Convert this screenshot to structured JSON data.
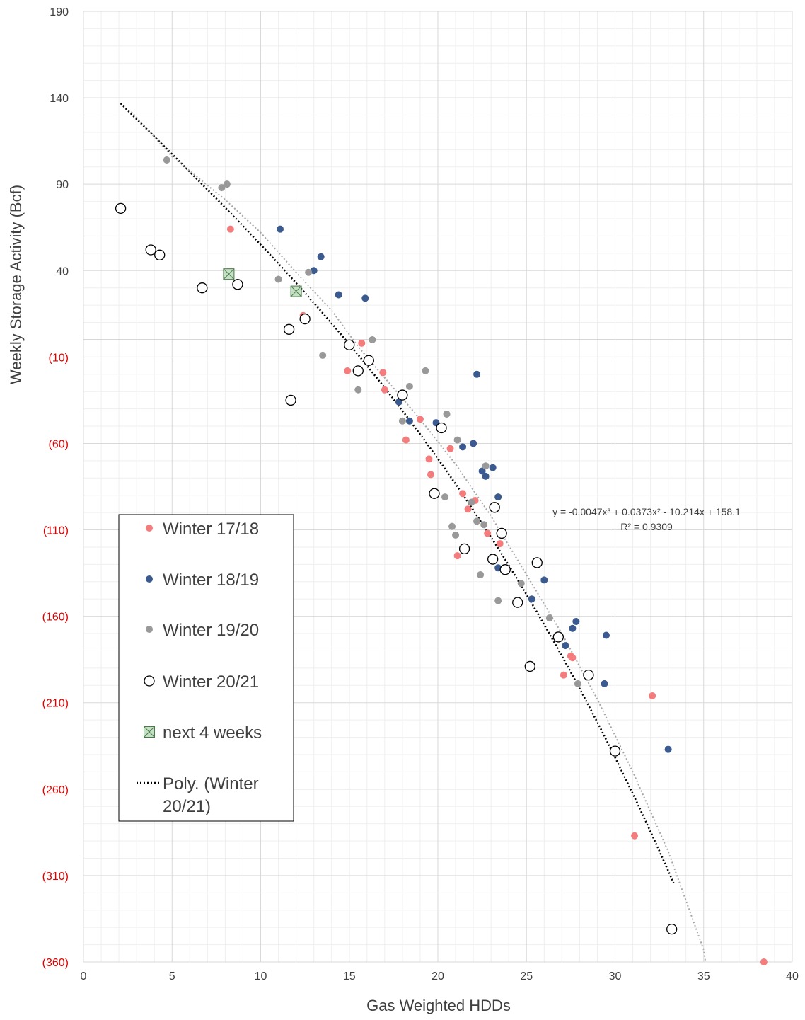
{
  "chart_data": {
    "type": "scatter",
    "xlabel": "Gas Weighted HDDs",
    "ylabel": "Weekly Storage Activity (Bcf)",
    "xlim": [
      0,
      40
    ],
    "ylim": [
      -360,
      190
    ],
    "x_ticks": [
      "0",
      "5",
      "10",
      "15",
      "20",
      "25",
      "30",
      "35",
      "40"
    ],
    "x_tick_values": [
      0,
      5,
      10,
      15,
      20,
      25,
      30,
      35,
      40
    ],
    "y_ticks": [
      "190",
      "140",
      "90",
      "40",
      "(10)",
      "(60)",
      "(110)",
      "(160)",
      "(210)",
      "(260)",
      "(310)",
      "(360)"
    ],
    "y_tick_values": [
      190,
      140,
      90,
      40,
      -10,
      -60,
      -110,
      -160,
      -210,
      -260,
      -310,
      -360
    ],
    "negative_tick_color": "#e00000",
    "grid": true,
    "legend_position": "bottom-left",
    "colors": {
      "winter_17_18": "#f47c7c",
      "winter_18_19": "#3b5a8f",
      "winter_19_20": "#999999",
      "winter_20_21_edge": "#000000",
      "next4_fill": "#c5e0c5",
      "next4_edge": "#4a7a4a",
      "poly_2021": "#000000",
      "poly_gray": "#a6a6a6",
      "grid": "#d9d9d9",
      "zero_line": "#bfbfbf"
    },
    "annotation": {
      "equation": "y = -0.0047x³ + 0.0373x² - 10.214x + 158.1",
      "r2": "R² = 0.9309"
    },
    "series": [
      {
        "name": "Winter 17/18",
        "marker": "filled-circle",
        "points": [
          [
            8.3,
            64
          ],
          [
            12.4,
            14
          ],
          [
            15.7,
            -2
          ],
          [
            14.9,
            -18
          ],
          [
            16.9,
            -19
          ],
          [
            17.0,
            -29
          ],
          [
            18.0,
            -33
          ],
          [
            19.0,
            -46
          ],
          [
            18.2,
            -58
          ],
          [
            20.7,
            -63
          ],
          [
            19.5,
            -69
          ],
          [
            19.6,
            -78
          ],
          [
            21.4,
            -89
          ],
          [
            21.7,
            -98
          ],
          [
            22.1,
            -93
          ],
          [
            22.8,
            -112
          ],
          [
            23.5,
            -118
          ],
          [
            21.1,
            -125
          ],
          [
            27.5,
            -183
          ],
          [
            27.6,
            -184
          ],
          [
            27.1,
            -194
          ],
          [
            32.1,
            -206
          ],
          [
            31.1,
            -287
          ],
          [
            38.4,
            -360
          ]
        ]
      },
      {
        "name": "Winter 18/19",
        "marker": "filled-circle",
        "points": [
          [
            11.1,
            64
          ],
          [
            13.4,
            48
          ],
          [
            13.0,
            40
          ],
          [
            14.4,
            26
          ],
          [
            15.9,
            24
          ],
          [
            22.2,
            -20
          ],
          [
            17.8,
            -36
          ],
          [
            18.4,
            -47
          ],
          [
            19.9,
            -48
          ],
          [
            22.0,
            -60
          ],
          [
            21.4,
            -62
          ],
          [
            22.5,
            -76
          ],
          [
            22.7,
            -79
          ],
          [
            23.1,
            -74
          ],
          [
            23.4,
            -91
          ],
          [
            23.4,
            -132
          ],
          [
            25.3,
            -150
          ],
          [
            26.0,
            -139
          ],
          [
            27.6,
            -167
          ],
          [
            27.8,
            -163
          ],
          [
            29.5,
            -171
          ],
          [
            27.2,
            -177
          ],
          [
            29.4,
            -199
          ],
          [
            33.0,
            -237
          ]
        ]
      },
      {
        "name": "Winter 19/20",
        "marker": "filled-circle",
        "points": [
          [
            4.7,
            104
          ],
          [
            7.8,
            88
          ],
          [
            8.1,
            90
          ],
          [
            11.0,
            35
          ],
          [
            12.7,
            39
          ],
          [
            16.3,
            0
          ],
          [
            13.5,
            -9
          ],
          [
            15.6,
            -18
          ],
          [
            19.3,
            -18
          ],
          [
            18.4,
            -27
          ],
          [
            15.5,
            -29
          ],
          [
            20.5,
            -43
          ],
          [
            18.0,
            -47
          ],
          [
            21.1,
            -58
          ],
          [
            22.7,
            -73
          ],
          [
            20.4,
            -91
          ],
          [
            21.9,
            -94
          ],
          [
            22.2,
            -105
          ],
          [
            22.6,
            -107
          ],
          [
            20.8,
            -108
          ],
          [
            21.0,
            -113
          ],
          [
            22.4,
            -136
          ],
          [
            24.7,
            -141
          ],
          [
            23.4,
            -151
          ],
          [
            26.3,
            -161
          ],
          [
            27.9,
            -199
          ]
        ]
      },
      {
        "name": "Winter 20/21",
        "marker": "open-circle",
        "points": [
          [
            2.1,
            76
          ],
          [
            3.8,
            52
          ],
          [
            4.3,
            49
          ],
          [
            6.7,
            30
          ],
          [
            8.7,
            32
          ],
          [
            11.6,
            6
          ],
          [
            12.5,
            12
          ],
          [
            15.0,
            -3
          ],
          [
            16.1,
            -12
          ],
          [
            15.5,
            -18
          ],
          [
            18.0,
            -32
          ],
          [
            11.7,
            -35
          ],
          [
            20.2,
            -51
          ],
          [
            19.8,
            -89
          ],
          [
            23.2,
            -97
          ],
          [
            23.6,
            -112
          ],
          [
            21.5,
            -121
          ],
          [
            23.1,
            -127
          ],
          [
            25.6,
            -129
          ],
          [
            23.8,
            -133
          ],
          [
            24.5,
            -152
          ],
          [
            26.8,
            -172
          ],
          [
            25.2,
            -189
          ],
          [
            28.5,
            -194
          ],
          [
            30.0,
            -238
          ],
          [
            33.2,
            -341
          ]
        ]
      },
      {
        "name": "next 4 weeks",
        "marker": "crossed-square",
        "points": [
          [
            8.2,
            38
          ],
          [
            12.0,
            28
          ]
        ]
      }
    ],
    "trendlines": [
      {
        "name": "Poly. (Winter 20/21)",
        "style": "dotted",
        "x_range": [
          2.1,
          33.3
        ],
        "coefficients": {
          "a3": -0.0047,
          "a2": 0.0373,
          "a1": -10.214,
          "a0": 158.1
        }
      },
      {
        "name": "",
        "style": "dotted",
        "points": [
          [
            2.7,
            132
          ],
          [
            5.0,
            106
          ],
          [
            8.0,
            81
          ],
          [
            10.0,
            62
          ],
          [
            12.0,
            39
          ],
          [
            14.0,
            17
          ],
          [
            15.5,
            -4
          ],
          [
            17.0,
            -22
          ],
          [
            19.0,
            -46
          ],
          [
            21.0,
            -72
          ],
          [
            23.0,
            -102
          ],
          [
            25.0,
            -136
          ],
          [
            27.0,
            -170
          ],
          [
            29.0,
            -208
          ],
          [
            31.0,
            -250
          ],
          [
            33.0,
            -296
          ],
          [
            35.0,
            -353
          ],
          [
            35.1,
            -360
          ]
        ]
      }
    ],
    "legend": [
      {
        "label": "Winter 17/18",
        "marker": "filled-circle",
        "color": "#f47c7c"
      },
      {
        "label": "Winter 18/19",
        "marker": "filled-circle",
        "color": "#3b5a8f"
      },
      {
        "label": "Winter 19/20",
        "marker": "filled-circle",
        "color": "#999999"
      },
      {
        "label": "Winter 20/21",
        "marker": "open-circle",
        "color": "#000000"
      },
      {
        "label": "next 4 weeks",
        "marker": "crossed-square",
        "color": "#c5e0c5"
      },
      {
        "label_lines": [
          "Poly. (Winter",
          "20/21)"
        ],
        "marker": "dotted-line",
        "color": "#000000"
      }
    ]
  }
}
